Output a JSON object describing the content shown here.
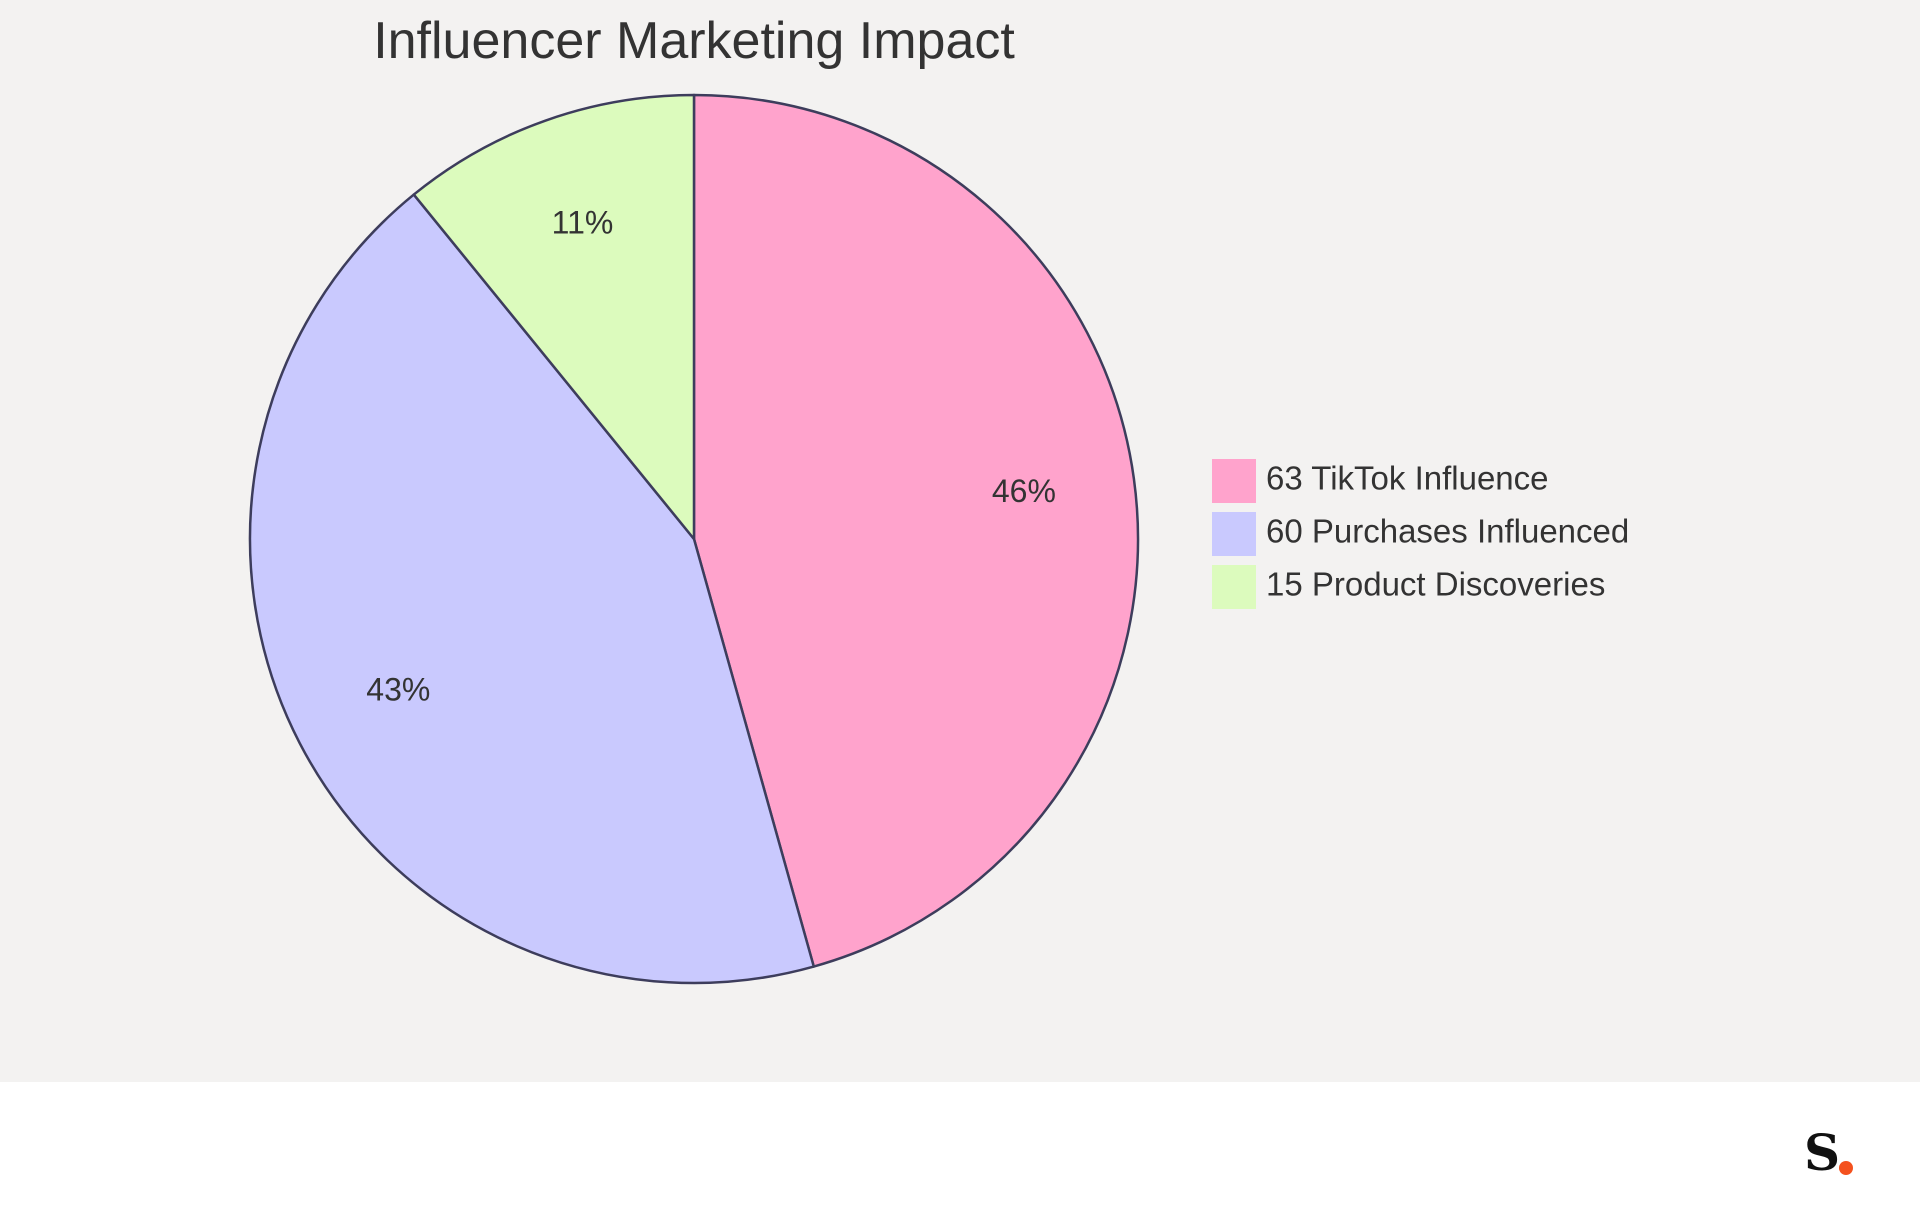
{
  "chart_data": {
    "type": "pie",
    "title": "Influencer Marketing Impact",
    "legend_position": "right",
    "slices": [
      {
        "label": "TikTok Influence",
        "value": 63,
        "percent_label": "46%",
        "color": "#ffa3cc"
      },
      {
        "label": "Purchases Influenced",
        "value": 60,
        "percent_label": "43%",
        "color": "#c9c9fe"
      },
      {
        "label": "Product Discoveries",
        "value": 15,
        "percent_label": "11%",
        "color": "#dcfbbd"
      }
    ],
    "legend_entries": [
      "63 TikTok Influence",
      "60 Purchases Influenced",
      "15 Product Discoveries"
    ],
    "stroke_color": "#3d3d5c",
    "background_color": "#f3f2f1"
  },
  "brand": {
    "logo_letter": "S",
    "dot_color": "#f4511e"
  }
}
